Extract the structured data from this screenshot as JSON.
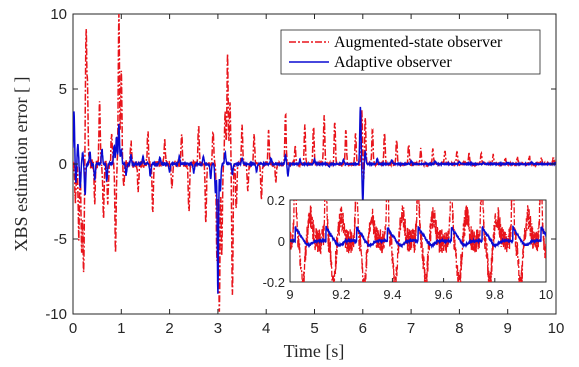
{
  "chart_data": {
    "type": "line",
    "xlabel": "Time [s]",
    "ylabel": "XBS estimation error [ ]",
    "xlim": [
      0,
      10
    ],
    "ylim": [
      -10,
      10
    ],
    "xticks": [
      0,
      1,
      2,
      3,
      4,
      5,
      6,
      7,
      8,
      9,
      10
    ],
    "yticks": [
      -10,
      -5,
      0,
      5,
      10
    ],
    "grid": false,
    "legend_position": "top-right",
    "series": [
      {
        "name": "Augmented-state observer",
        "color": "#e8141b",
        "style": "dash-dot",
        "peaks": [
          [
            0.05,
            -2.5
          ],
          [
            0.12,
            -4.8
          ],
          [
            0.18,
            -6.0
          ],
          [
            0.22,
            -7.3
          ],
          [
            0.27,
            8.7
          ],
          [
            0.3,
            5.0
          ],
          [
            0.45,
            -2.5
          ],
          [
            0.55,
            4.0
          ],
          [
            0.63,
            -3.5
          ],
          [
            0.72,
            -2.5
          ],
          [
            0.8,
            2.0
          ],
          [
            0.88,
            -5.8
          ],
          [
            0.95,
            9.9
          ],
          [
            1.0,
            6.0
          ],
          [
            1.05,
            -1.5
          ],
          [
            1.2,
            1.5
          ],
          [
            1.35,
            -1.8
          ],
          [
            1.55,
            2.1
          ],
          [
            1.65,
            -3.2
          ],
          [
            1.9,
            1.5
          ],
          [
            2.05,
            -1.7
          ],
          [
            2.25,
            2.1
          ],
          [
            2.4,
            -3.3
          ],
          [
            2.6,
            2.5
          ],
          [
            2.75,
            -3.9
          ],
          [
            2.9,
            2.2
          ],
          [
            2.98,
            -6.5
          ],
          [
            3.03,
            -9.8
          ],
          [
            3.08,
            -6.0
          ],
          [
            3.15,
            3.5
          ],
          [
            3.2,
            7.2
          ],
          [
            3.25,
            4.0
          ],
          [
            3.3,
            -8.8
          ],
          [
            3.38,
            -3.0
          ],
          [
            3.5,
            2.5
          ],
          [
            3.62,
            -1.8
          ],
          [
            3.75,
            2.0
          ],
          [
            3.9,
            -2.3
          ],
          [
            4.05,
            2.2
          ],
          [
            4.2,
            -1.2
          ],
          [
            4.4,
            3.4
          ],
          [
            4.6,
            1.2
          ],
          [
            4.8,
            2.6
          ],
          [
            4.98,
            2.5
          ],
          [
            5.2,
            3.2
          ],
          [
            5.42,
            2.8
          ],
          [
            5.65,
            2.3
          ],
          [
            5.85,
            2.0
          ],
          [
            5.98,
            3.5
          ],
          [
            6.02,
            -1.2
          ],
          [
            6.05,
            3.2
          ],
          [
            6.2,
            2.3
          ],
          [
            6.45,
            2.1
          ],
          [
            6.7,
            1.6
          ],
          [
            6.95,
            1.3
          ],
          [
            7.2,
            1.0
          ],
          [
            7.45,
            1.0
          ],
          [
            7.7,
            0.9
          ],
          [
            7.95,
            0.8
          ],
          [
            8.2,
            0.7
          ],
          [
            8.45,
            0.7
          ],
          [
            8.7,
            0.6
          ],
          [
            8.95,
            0.5
          ],
          [
            9.2,
            0.5
          ],
          [
            9.45,
            0.5
          ],
          [
            9.7,
            0.4
          ],
          [
            9.95,
            0.4
          ]
        ]
      },
      {
        "name": "Adaptive observer",
        "color": "#0a0ad2",
        "style": "solid",
        "peaks": [
          [
            0.02,
            3.5
          ],
          [
            0.06,
            -1.2
          ],
          [
            0.1,
            1.3
          ],
          [
            0.15,
            -1.5
          ],
          [
            0.2,
            0.8
          ],
          [
            0.25,
            -2.0
          ],
          [
            0.35,
            0.8
          ],
          [
            0.45,
            -1.0
          ],
          [
            0.6,
            1.0
          ],
          [
            0.7,
            -1.1
          ],
          [
            0.85,
            1.2
          ],
          [
            0.9,
            1.8
          ],
          [
            0.95,
            2.6
          ],
          [
            1.0,
            1.0
          ],
          [
            1.1,
            -0.7
          ],
          [
            1.2,
            0.6
          ],
          [
            1.45,
            0.5
          ],
          [
            1.6,
            -0.8
          ],
          [
            1.8,
            0.5
          ],
          [
            2.0,
            -0.5
          ],
          [
            2.2,
            0.5
          ],
          [
            2.5,
            -0.6
          ],
          [
            2.7,
            0.5
          ],
          [
            2.85,
            -1.0
          ],
          [
            2.95,
            -2.0
          ],
          [
            3.0,
            -8.6
          ],
          [
            3.05,
            -1.8
          ],
          [
            3.15,
            0.8
          ],
          [
            3.3,
            -0.7
          ],
          [
            3.5,
            0.4
          ],
          [
            3.8,
            -0.5
          ],
          [
            4.1,
            0.4
          ],
          [
            4.4,
            0.6
          ],
          [
            4.45,
            -0.8
          ],
          [
            4.7,
            0.3
          ],
          [
            5.0,
            0.3
          ],
          [
            5.3,
            -0.2
          ],
          [
            5.6,
            0.3
          ],
          [
            5.95,
            3.8
          ],
          [
            6.0,
            -2.6
          ],
          [
            6.05,
            0.8
          ],
          [
            6.3,
            0.4
          ],
          [
            6.6,
            0.3
          ],
          [
            7.0,
            0.2
          ],
          [
            7.5,
            0.2
          ],
          [
            8.0,
            0.15
          ],
          [
            8.5,
            0.1
          ],
          [
            9.0,
            0.1
          ],
          [
            9.5,
            0.1
          ],
          [
            10.0,
            0.05
          ]
        ]
      }
    ],
    "inset": {
      "xlim": [
        9,
        10
      ],
      "ylim": [
        -0.2,
        0.2
      ],
      "xticks": [
        9,
        9.2,
        9.4,
        9.6,
        9.8,
        10
      ],
      "yticks": [
        -0.2,
        0,
        0.2
      ]
    }
  },
  "labels": {
    "xlabel": "Time [s]",
    "ylabel": "XBS estimation error [ ]",
    "legend_aug": "Augmented-state observer",
    "legend_adp": "Adaptive observer",
    "xt": [
      "0",
      "1",
      "2",
      "3",
      "4",
      "5",
      "6",
      "7",
      "8",
      "9",
      "10"
    ],
    "yt": [
      "-10",
      "-5",
      "0",
      "5",
      "10"
    ],
    "ixt": [
      "9",
      "9.2",
      "9.4",
      "9.6",
      "9.8",
      "10"
    ],
    "iyt": [
      "-0.2",
      "0",
      "0.2"
    ]
  }
}
